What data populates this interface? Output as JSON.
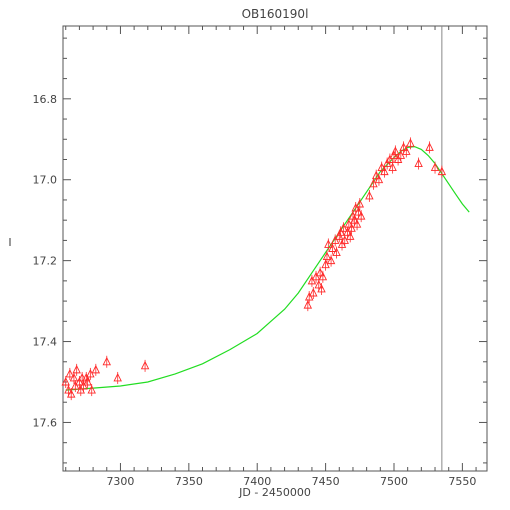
{
  "chart_data": {
    "type": "scatter",
    "title": "OB160190l",
    "xlabel": "JD - 2450000",
    "ylabel": "I",
    "xlim": [
      7258,
      7568
    ],
    "ylim": [
      17.72,
      16.62
    ],
    "y_inverted": true,
    "grid": false,
    "legend": "none",
    "x_ticks": [
      7300,
      7350,
      7400,
      7450,
      7500,
      7550
    ],
    "x_tick_labels": [
      "7300",
      "7350",
      "7400",
      "7450",
      "7500",
      "7550"
    ],
    "y_ticks": [
      16.8,
      17.0,
      17.2,
      17.4,
      17.6
    ],
    "y_tick_labels": [
      "16.8",
      "17.0",
      "17.2",
      "17.4",
      "17.6"
    ],
    "vertical_line_x": 7535,
    "colors": {
      "points": "#ff2a2a",
      "model": "#22dd22",
      "axes": "#555555",
      "vline": "#888888"
    },
    "series": [
      {
        "kind": "points",
        "marker": "triangle",
        "x": [
          7260,
          7262,
          7263,
          7264,
          7266,
          7267,
          7268,
          7270,
          7271,
          7272,
          7273,
          7275,
          7276,
          7278,
          7279,
          7282,
          7290,
          7298,
          7318,
          7437,
          7438,
          7440,
          7441,
          7443,
          7445,
          7446,
          7447,
          7448,
          7450,
          7451,
          7452,
          7454,
          7455,
          7457,
          7458,
          7460,
          7461,
          7462,
          7463,
          7464,
          7466,
          7467,
          7468,
          7469,
          7470,
          7471,
          7472,
          7473,
          7474,
          7475,
          7476,
          7482,
          7485,
          7487,
          7489,
          7491,
          7493,
          7495,
          7497,
          7499,
          7500,
          7501,
          7503,
          7505,
          7507,
          7509,
          7512,
          7518,
          7526,
          7530,
          7535
        ],
        "y": [
          17.5,
          17.52,
          17.48,
          17.53,
          17.49,
          17.51,
          17.47,
          17.5,
          17.52,
          17.49,
          17.51,
          17.49,
          17.5,
          17.48,
          17.52,
          17.47,
          17.45,
          17.49,
          17.46,
          17.31,
          17.29,
          17.25,
          17.28,
          17.24,
          17.26,
          17.23,
          17.27,
          17.24,
          17.21,
          17.19,
          17.16,
          17.2,
          17.17,
          17.15,
          17.18,
          17.14,
          17.13,
          17.16,
          17.12,
          17.15,
          17.13,
          17.11,
          17.14,
          17.12,
          17.09,
          17.1,
          17.07,
          17.11,
          17.08,
          17.06,
          17.09,
          17.04,
          17.01,
          16.99,
          17.0,
          16.97,
          16.98,
          16.96,
          16.95,
          16.97,
          16.94,
          16.93,
          16.95,
          16.94,
          16.92,
          16.93,
          16.91,
          16.96,
          16.92,
          16.97,
          16.98
        ]
      },
      {
        "kind": "model",
        "x": [
          7260,
          7280,
          7300,
          7320,
          7340,
          7360,
          7380,
          7400,
          7410,
          7420,
          7430,
          7440,
          7450,
          7460,
          7470,
          7480,
          7490,
          7500,
          7505,
          7510,
          7515,
          7520,
          7525,
          7530,
          7535,
          7540,
          7545,
          7550,
          7555
        ],
        "y": [
          17.52,
          17.515,
          17.51,
          17.5,
          17.48,
          17.455,
          17.42,
          17.38,
          17.35,
          17.32,
          17.28,
          17.23,
          17.18,
          17.13,
          17.08,
          17.03,
          16.98,
          16.945,
          16.93,
          16.92,
          16.918,
          16.925,
          16.94,
          16.96,
          16.985,
          17.01,
          17.035,
          17.06,
          17.08
        ]
      }
    ]
  }
}
